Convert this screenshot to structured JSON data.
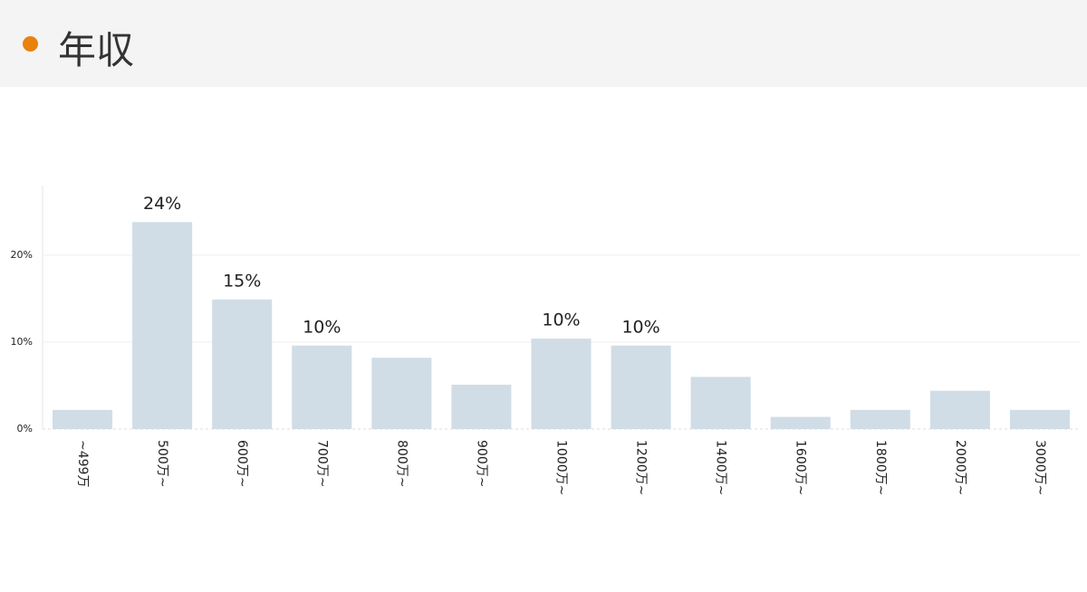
{
  "header": {
    "title": "年収"
  },
  "chart_data": {
    "type": "bar",
    "categories": [
      "~499万",
      "500万~",
      "600万~",
      "700万~",
      "800万~",
      "900万~",
      "1000万~",
      "1200万~",
      "1400万~",
      "1600万~",
      "1800万~",
      "2000万~",
      "3000万~"
    ],
    "values": [
      2.2,
      23.8,
      14.9,
      9.6,
      8.2,
      5.1,
      10.4,
      9.6,
      6.0,
      1.4,
      2.2,
      4.4,
      2.2
    ],
    "value_labels": [
      null,
      "24%",
      "15%",
      "10%",
      null,
      null,
      "10%",
      "10%",
      null,
      null,
      null,
      null,
      null
    ],
    "color": "#d0dde6",
    "ylim": [
      0,
      28
    ],
    "yticks": [
      {
        "value": 0,
        "label": "0%"
      },
      {
        "value": 10,
        "label": "10%"
      },
      {
        "value": 20,
        "label": "20%"
      }
    ],
    "grid": true
  }
}
